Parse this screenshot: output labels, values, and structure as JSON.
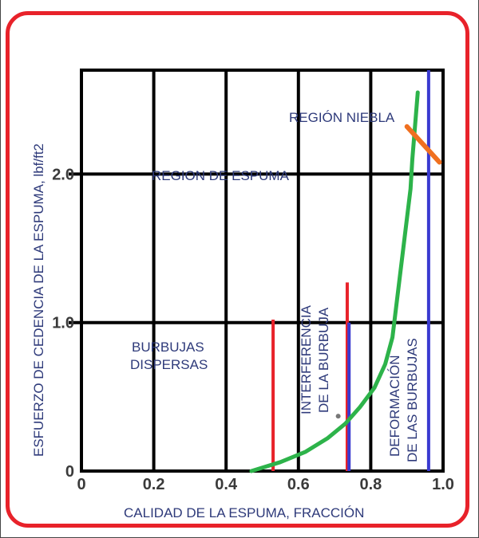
{
  "chart_data": {
    "type": "line",
    "xlabel": "CALIDAD DE LA ESPUMA, FRACCIÓN",
    "ylabel": "ESFUERZO DE CEDENCIA DE LA ESPUMA, lbf/ft2",
    "xlim": [
      0,
      1.0
    ],
    "ylim": [
      0,
      2.7
    ],
    "x_ticks": [
      "0",
      "0.2",
      "0.4",
      "0.6",
      "0.8",
      "1.0"
    ],
    "y_ticks": [
      "0",
      "1.0",
      "2.0"
    ],
    "grid": true,
    "regions": {
      "burbujas_line1": "BURBUJAS",
      "burbujas_line2": "DISPERSAS",
      "espuma": "REGION DE ESPUMA",
      "niebla": "REGIÓN NIEBLA",
      "interferencia_line1": "INTERFERENCIA",
      "interferencia_line2": "DE LA BURBUJA",
      "deformacion_line1": "DEFORMACIÓN",
      "deformacion_line2": "DE LAS BURBUJAS"
    },
    "series": [
      {
        "color": "#2db34a",
        "x": [
          0.47,
          0.55,
          0.62,
          0.68,
          0.73,
          0.77,
          0.81,
          0.84,
          0.86,
          0.87,
          0.88,
          0.89,
          0.9,
          0.91,
          0.915,
          0.92,
          0.925,
          0.93
        ],
        "y": [
          0.0,
          0.06,
          0.13,
          0.22,
          0.32,
          0.43,
          0.56,
          0.72,
          0.9,
          1.1,
          1.3,
          1.5,
          1.7,
          1.9,
          2.1,
          2.25,
          2.4,
          2.55
        ]
      }
    ],
    "vertical_markers": [
      {
        "color": "#e8222a",
        "x": 0.53,
        "y_top": 1.02
      },
      {
        "color": "#e8222a",
        "x": 0.735,
        "y_top": 1.27
      },
      {
        "color": "#3a3ad0",
        "x": 0.74,
        "y_top": 1.0
      },
      {
        "color": "#3a3ad0",
        "x": 0.96,
        "y_top": 2.7
      }
    ],
    "orange_segment": {
      "color": "#f07020",
      "x": [
        0.9,
        0.99
      ],
      "y": [
        2.32,
        2.08
      ]
    }
  }
}
